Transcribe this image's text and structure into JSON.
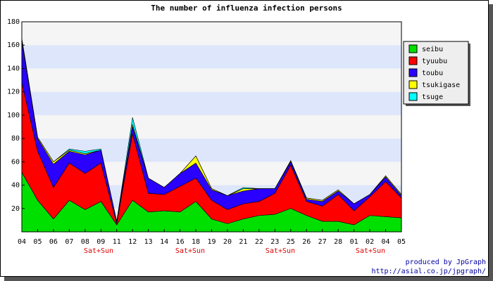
{
  "chart_data": {
    "type": "stacked_area",
    "title": "The number of influenza infection persons",
    "categories": [
      "04",
      "05",
      "06",
      "07",
      "08",
      "09",
      "11",
      "12",
      "13",
      "14",
      "16",
      "18",
      "19",
      "20",
      "21",
      "22",
      "23",
      "25",
      "26",
      "27",
      "28",
      "01",
      "02",
      "04",
      "05"
    ],
    "series": [
      {
        "name": "seibu",
        "color": "#00e000",
        "values": [
          51,
          27,
          11,
          27,
          19,
          26,
          6,
          27,
          17,
          18,
          17,
          26,
          11,
          7,
          11,
          14,
          15,
          20,
          14,
          9,
          9,
          6,
          14,
          13,
          12
        ]
      },
      {
        "name": "tyuubu",
        "color": "#ff0000",
        "values": [
          77,
          42,
          27,
          32,
          31,
          33,
          1,
          57,
          16,
          14,
          22,
          20,
          16,
          12,
          13,
          12,
          18,
          37,
          12,
          13,
          23,
          12,
          16,
          30,
          17
        ]
      },
      {
        "name": "toubu",
        "color": "#2a00ff",
        "values": [
          35,
          11,
          20,
          10,
          16,
          11,
          2,
          6,
          13,
          6,
          11,
          13,
          9,
          12,
          11,
          11,
          4,
          3,
          2,
          4,
          3,
          6,
          2,
          4,
          2
        ]
      },
      {
        "name": "tsukigase",
        "color": "#ffff00",
        "values": [
          2,
          1,
          2,
          1,
          1,
          0,
          0,
          2,
          0,
          0,
          0,
          6,
          1,
          0,
          2,
          0,
          0,
          1,
          1,
          1,
          1,
          0,
          0,
          1,
          1
        ]
      },
      {
        "name": "tsuge",
        "color": "#00ffff",
        "values": [
          1,
          0,
          0,
          1,
          2,
          1,
          0,
          6,
          0,
          0,
          0,
          0,
          0,
          0,
          1,
          0,
          0,
          0,
          0,
          0,
          0,
          0,
          0,
          0,
          0
        ]
      }
    ],
    "annotations": [
      "Sat+Sun",
      "Sat+Sun",
      "Sat+Sun",
      "Sat+Sun"
    ],
    "credits": [
      "produced by JpGraph",
      "http://asial.co.jp/jpgraph/"
    ],
    "ylim": [
      0,
      180
    ],
    "yticks": [
      20,
      40,
      60,
      80,
      100,
      120,
      140,
      160,
      180
    ],
    "grid": true,
    "band_colors": [
      "#f5f5f5",
      "#dde6fb"
    ],
    "legend": "upper right"
  }
}
